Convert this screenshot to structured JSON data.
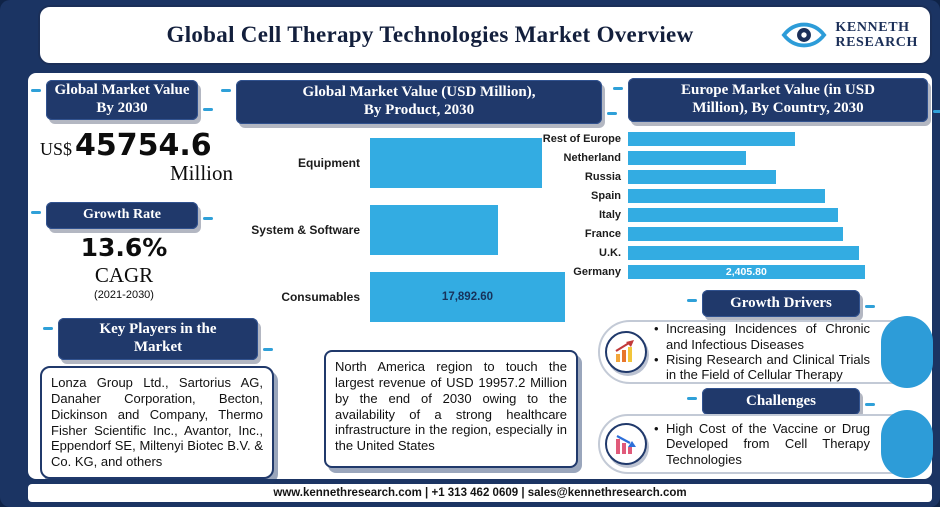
{
  "header": {
    "title": "Global Cell Therapy Technologies Market Overview",
    "logo": {
      "line1": "KENNETH",
      "line2": "RESEARCH"
    }
  },
  "left": {
    "value_badge_lines": [
      "Global Market Value",
      "By 2030"
    ],
    "currency": "US$",
    "value": "45754.6",
    "unit": "Million",
    "growth_badge": "Growth Rate",
    "growth_value": "13.6%",
    "growth_metric": "CAGR",
    "growth_period": "(2021-2030)",
    "key_players_badge_lines": [
      "Key Players in the",
      "Market"
    ],
    "key_players": "Lonza Group Ltd., Sartorius AG, Danaher Corporation, Becton, Dickinson and Company, Thermo Fisher Scientific Inc., Avantor, Inc., Eppendorf SE, Miltenyi Biotec B.V. & Co. KG, and others"
  },
  "center": {
    "title_lines": [
      "Global Market Value (USD Million),",
      "By Product, 2030"
    ],
    "note": "North America region to touch the largest revenue of USD 19957.2 Million by the end of 2030 owing to the availability of a strong healthcare infrastructure in the region, especially in the United States"
  },
  "right": {
    "title_lines": [
      "Europe Market Value (in USD",
      "Million), By Country, 2030"
    ],
    "growth_drivers_badge": "Growth Drivers",
    "growth_drivers": [
      "Increasing Incidences of Chronic and Infectious Diseases",
      "Rising Research and Clinical Trials in the Field of Cellular Therapy"
    ],
    "challenges_badge": "Challenges",
    "challenges": [
      "High Cost of the Vaccine or Drug Developed from Cell Therapy Technologies"
    ]
  },
  "footer": {
    "contact_line": "www.kennethresearch.com | +1 313 462 0609 | sales@kennethresearch.com"
  },
  "colors": {
    "navy": "#20396b",
    "accent_teal": "#2d9cd8",
    "bar_blue": "#33ace2"
  },
  "chart_data": [
    {
      "type": "bar",
      "orientation": "horizontal",
      "title": "Global Market Value (USD Million), By Product, 2030",
      "categories": [
        "Equipment",
        "System & Software",
        "Consumables"
      ],
      "values": [
        15800,
        11700,
        17892.6
      ],
      "data_labels": [
        "",
        "",
        "17,892.60"
      ],
      "xmax": 20000,
      "bar_color": "#33ace2",
      "legend": "none",
      "grid": false
    },
    {
      "type": "bar",
      "orientation": "horizontal",
      "title": "Europe Market Value (in USD Million), By Country, 2030",
      "categories": [
        "Rest of Europe",
        "Netherland",
        "Russia",
        "Spain",
        "Italy",
        "France",
        "U.K.",
        "Germany"
      ],
      "values": [
        1700,
        1200,
        1500,
        2000,
        2130,
        2180,
        2350,
        2405.8
      ],
      "data_labels": [
        "",
        "",
        "",
        "",
        "",
        "",
        "",
        "2,405.80"
      ],
      "xmax": 2500,
      "bar_color": "#33ace2",
      "legend": "none",
      "grid": false
    }
  ]
}
